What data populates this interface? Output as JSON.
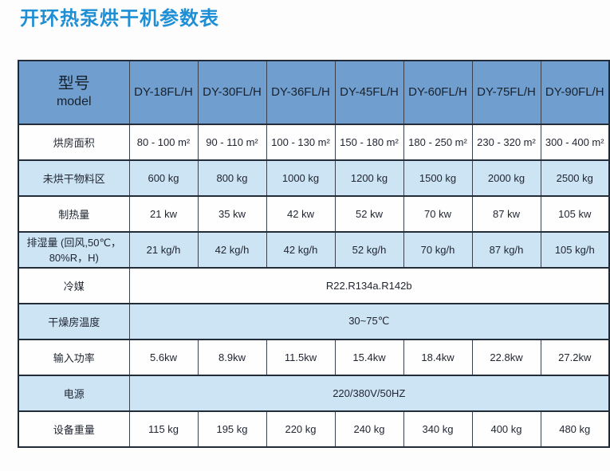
{
  "title": "开环热泵烘干机参数表",
  "colors": {
    "title_blue": "#1e8fd5",
    "header_bg": "#6f9ecf",
    "shaded_row_bg": "#cde4f5",
    "border": "#232d3a"
  },
  "table": {
    "header": {
      "model_label_zh": "型号",
      "model_label_en": "model",
      "columns": [
        "DY-18FL/H",
        "DY-30FL/H",
        "DY-36FL/H",
        "DY-45FL/H",
        "DY-60FL/H",
        "DY-75FL/H",
        "DY-90FL/H"
      ]
    },
    "rows": [
      {
        "label": "烘房面积",
        "shaded": false,
        "values": [
          "80 - 100 m²",
          "90 - 110 m²",
          "100 - 130 m²",
          "150 - 180 m²",
          "180 - 250 m²",
          "230 - 320 m²",
          "300 - 400 m²"
        ]
      },
      {
        "label": "未烘干物料区",
        "shaded": true,
        "values": [
          "600 kg",
          "800 kg",
          "1000 kg",
          "1200 kg",
          "1500 kg",
          "2000 kg",
          "2500 kg"
        ]
      },
      {
        "label": "制热量",
        "shaded": false,
        "values": [
          "21 kw",
          "35 kw",
          "42 kw",
          "52 kw",
          "70 kw",
          "87 kw",
          "105 kw"
        ]
      },
      {
        "label": "排湿量 (回风,50℃，80%R，H)",
        "shaded": true,
        "values": [
          "21 kg/h",
          "42 kg/h",
          "42 kg/h",
          "52 kg/h",
          "70 kg/h",
          "87 kg/h",
          "105 kg/h"
        ]
      },
      {
        "label": "冷媒",
        "shaded": false,
        "merged_value": "R22.R134a.R142b"
      },
      {
        "label": "干燥房温度",
        "shaded": true,
        "merged_value": "30~75℃"
      },
      {
        "label": "输入功率",
        "shaded": false,
        "values": [
          "5.6kw",
          "8.9kw",
          "11.5kw",
          "15.4kw",
          "18.4kw",
          "22.8kw",
          "27.2kw"
        ]
      },
      {
        "label": "电源",
        "shaded": true,
        "merged_value": "220/380V/50HZ"
      },
      {
        "label": "设备重量",
        "shaded": false,
        "values": [
          "115 kg",
          "195 kg",
          "220 kg",
          "240 kg",
          "340 kg",
          "400 kg",
          "480 kg"
        ]
      }
    ]
  }
}
